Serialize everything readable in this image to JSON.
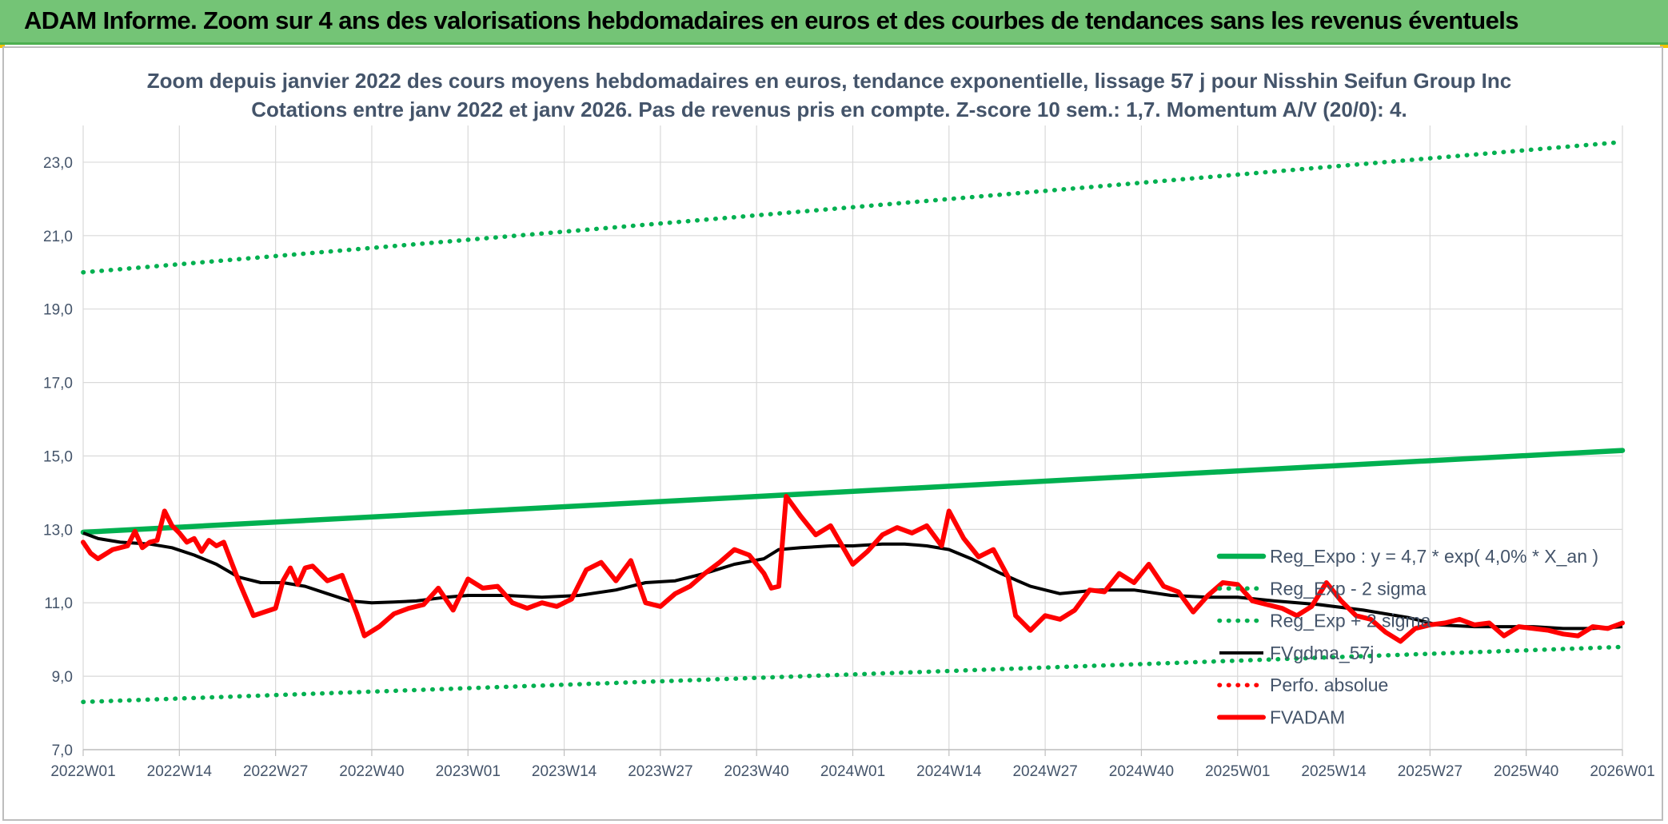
{
  "header": {
    "banner_title": "ADAM Informe. Zoom sur 4 ans des valorisations hebdomadaires en euros et des courbes de tendances sans les revenus éventuels"
  },
  "colors": {
    "banner_bg": "#74c476",
    "trend": "#00b050",
    "band": "#00b050",
    "fvgdma": "#000000",
    "perfo": "#ff0000",
    "fvadam": "#ff0000",
    "grid": "#d9d9d9",
    "text": "#44546a"
  },
  "chart_data": {
    "type": "line",
    "title": "Zoom depuis janvier 2022 des cours moyens hebdomadaires en euros, tendance exponentielle, lissage 57 j pour Nisshin Seifun Group Inc",
    "subtitle": "Cotations entre janv 2022 et janv 2026. Pas de revenus pris en compte. Z-score 10 sem.: 1,7. Momentum A/V (20/0): 4.",
    "xlabel": "",
    "ylabel": "",
    "ylim": [
      7.0,
      24.0
    ],
    "y_ticks": [
      "7,0",
      "9,0",
      "11,0",
      "13,0",
      "15,0",
      "17,0",
      "19,0",
      "21,0",
      "23,0"
    ],
    "x_ticks": [
      "2022W01",
      "2022W14",
      "2022W27",
      "2022W40",
      "2023W01",
      "2023W14",
      "2023W27",
      "2023W40",
      "2024W01",
      "2024W14",
      "2024W27",
      "2024W40",
      "2025W01",
      "2025W14",
      "2025W27",
      "2025W40",
      "2026W01"
    ],
    "grid": true,
    "legend_position": "right",
    "series": [
      {
        "name": "Reg_Expo : y = 4,7 * exp( 4,0% *  X_an )",
        "style": "solid-thick",
        "color": "#00b050",
        "x": [
          "2022W01",
          "2026W01"
        ],
        "values": [
          12.92,
          15.15
        ]
      },
      {
        "name": "Reg_Exp - 2 sigma",
        "style": "dotted",
        "color": "#00b050",
        "x": [
          "2022W01",
          "2026W01"
        ],
        "values": [
          8.3,
          9.8
        ]
      },
      {
        "name": "Reg_Exp + 2 sigma",
        "style": "dotted",
        "color": "#00b050",
        "x": [
          "2022W01",
          "2026W01"
        ],
        "values": [
          20.0,
          23.55
        ]
      },
      {
        "name": "FVgdma_57j",
        "style": "solid",
        "color": "#000000",
        "x": [
          "2022W01",
          "2022W03",
          "2022W06",
          "2022W10",
          "2022W13",
          "2022W16",
          "2022W19",
          "2022W22",
          "2022W25",
          "2022W28",
          "2022W31",
          "2022W34",
          "2022W37",
          "2022W40",
          "2022W43",
          "2022W46",
          "2022W50",
          "2023W01",
          "2023W06",
          "2023W11",
          "2023W16",
          "2023W21",
          "2023W25",
          "2023W29",
          "2023W33",
          "2023W37",
          "2023W41",
          "2023W43",
          "2023W46",
          "2023W50",
          "2024W01",
          "2024W05",
          "2024W08",
          "2024W11",
          "2024W14",
          "2024W17",
          "2024W21",
          "2024W25",
          "2024W29",
          "2024W34",
          "2024W39",
          "2024W44",
          "2024W49",
          "2025W01",
          "2025W06",
          "2025W12",
          "2025W18",
          "2025W24",
          "2025W28",
          "2025W33",
          "2025W37",
          "2025W41",
          "2025W45",
          "2025W49",
          "2026W01"
        ],
        "values": [
          12.9,
          12.75,
          12.65,
          12.6,
          12.5,
          12.3,
          12.05,
          11.7,
          11.55,
          11.55,
          11.45,
          11.25,
          11.05,
          11.0,
          11.02,
          11.05,
          11.15,
          11.2,
          11.2,
          11.15,
          11.2,
          11.35,
          11.55,
          11.6,
          11.8,
          12.05,
          12.2,
          12.45,
          12.5,
          12.55,
          12.55,
          12.6,
          12.6,
          12.55,
          12.45,
          12.2,
          11.8,
          11.45,
          11.25,
          11.35,
          11.35,
          11.2,
          11.15,
          11.15,
          11.05,
          10.95,
          10.8,
          10.6,
          10.4,
          10.35,
          10.35,
          10.35,
          10.3,
          10.3,
          10.35
        ]
      },
      {
        "name": "Perfo. absolue",
        "style": "dotted",
        "color": "#ff0000",
        "x": [],
        "values": []
      },
      {
        "name": "FVADAM",
        "style": "solid-thick",
        "color": "#ff0000",
        "x": [
          "2022W01",
          "2022W02",
          "2022W03",
          "2022W05",
          "2022W07",
          "2022W08",
          "2022W09",
          "2022W10",
          "2022W11",
          "2022W12",
          "2022W13",
          "2022W14",
          "2022W15",
          "2022W16",
          "2022W17",
          "2022W18",
          "2022W19",
          "2022W20",
          "2022W22",
          "2022W24",
          "2022W27",
          "2022W28",
          "2022W29",
          "2022W30",
          "2022W31",
          "2022W32",
          "2022W34",
          "2022W36",
          "2022W38",
          "2022W39",
          "2022W41",
          "2022W43",
          "2022W45",
          "2022W47",
          "2022W49",
          "2022W51",
          "2023W01",
          "2023W03",
          "2023W05",
          "2023W07",
          "2023W09",
          "2023W11",
          "2023W13",
          "2023W15",
          "2023W17",
          "2023W19",
          "2023W21",
          "2023W23",
          "2023W25",
          "2023W27",
          "2023W29",
          "2023W31",
          "2023W33",
          "2023W35",
          "2023W37",
          "2023W39",
          "2023W41",
          "2023W42",
          "2023W43",
          "2023W44",
          "2023W46",
          "2023W48",
          "2023W50",
          "2024W01",
          "2024W03",
          "2024W05",
          "2024W07",
          "2024W09",
          "2024W11",
          "2024W13",
          "2024W14",
          "2024W16",
          "2024W18",
          "2024W20",
          "2024W22",
          "2024W23",
          "2024W25",
          "2024W27",
          "2024W29",
          "2024W31",
          "2024W33",
          "2024W35",
          "2024W37",
          "2024W39",
          "2024W41",
          "2024W43",
          "2024W45",
          "2024W47",
          "2024W49",
          "2024W51",
          "2025W01",
          "2025W03",
          "2025W05",
          "2025W07",
          "2025W09",
          "2025W11",
          "2025W13",
          "2025W15",
          "2025W17",
          "2025W19",
          "2025W21",
          "2025W23",
          "2025W25",
          "2025W27",
          "2025W29",
          "2025W31",
          "2025W33",
          "2025W35",
          "2025W37",
          "2025W39",
          "2025W41",
          "2025W43",
          "2025W45",
          "2025W47",
          "2025W49",
          "2025W51",
          "2026W01"
        ],
        "values": [
          12.65,
          12.35,
          12.2,
          12.45,
          12.55,
          12.95,
          12.5,
          12.65,
          12.7,
          13.5,
          13.1,
          12.9,
          12.65,
          12.75,
          12.4,
          12.7,
          12.55,
          12.65,
          11.6,
          10.65,
          10.85,
          11.6,
          11.95,
          11.5,
          11.95,
          12.0,
          11.6,
          11.75,
          10.7,
          10.1,
          10.35,
          10.7,
          10.85,
          10.95,
          11.4,
          10.8,
          11.65,
          11.4,
          11.45,
          11.0,
          10.85,
          11.0,
          10.9,
          11.1,
          11.9,
          12.1,
          11.6,
          12.15,
          11.0,
          10.9,
          11.25,
          11.45,
          11.8,
          12.1,
          12.45,
          12.3,
          11.8,
          11.4,
          11.45,
          13.9,
          13.35,
          12.85,
          13.1,
          12.05,
          12.4,
          12.85,
          13.05,
          12.9,
          13.1,
          12.55,
          13.5,
          12.75,
          12.25,
          12.45,
          11.7,
          10.65,
          10.25,
          10.65,
          10.55,
          10.8,
          11.35,
          11.3,
          11.8,
          11.55,
          12.05,
          11.45,
          11.3,
          10.75,
          11.2,
          11.55,
          11.5,
          11.05,
          10.95,
          10.85,
          10.65,
          10.9,
          11.55,
          11.05,
          10.65,
          10.55,
          10.2,
          9.95,
          10.3,
          10.4,
          10.45,
          10.55,
          10.4,
          10.45,
          10.1,
          10.35,
          10.3,
          10.25,
          10.15,
          10.1,
          10.35,
          10.3,
          10.45
        ]
      }
    ]
  }
}
